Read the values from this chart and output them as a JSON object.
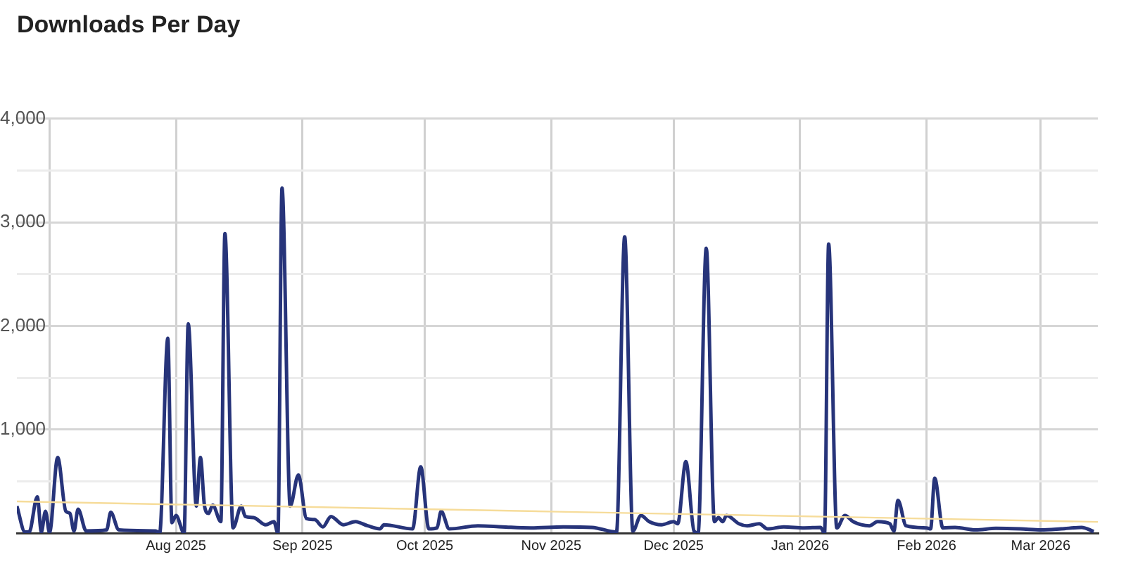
{
  "chart_data": {
    "type": "line",
    "title": "Downloads Per Day",
    "marker": "none",
    "grid": true,
    "xlim": [
      "2025-06-23",
      "2026-03-15"
    ],
    "xticks": [
      {
        "value": "2025-07",
        "label": null
      },
      {
        "value": "2025-08",
        "label": "Aug 2025"
      },
      {
        "value": "2025-09",
        "label": "Sep 2025"
      },
      {
        "value": "2025-10",
        "label": "Oct 2025"
      },
      {
        "value": "2025-11",
        "label": "Nov 2025"
      },
      {
        "value": "2025-12",
        "label": "Dec 2025"
      },
      {
        "value": "2026-01",
        "label": "Jan 2026"
      },
      {
        "value": "2026-02",
        "label": "Feb 2026"
      },
      {
        "value": "2026-03",
        "label": "Mar 2026"
      }
    ],
    "ylim": [
      0,
      4000
    ],
    "yticks": [
      {
        "value": 0,
        "label": null
      },
      {
        "value": 500,
        "label": null
      },
      {
        "value": 1000,
        "label": "1,000"
      },
      {
        "value": 1500,
        "label": null
      },
      {
        "value": 2000,
        "label": "2,000"
      },
      {
        "value": 2500,
        "label": null
      },
      {
        "value": 3000,
        "label": "3,000"
      },
      {
        "value": 3500,
        "label": null
      },
      {
        "value": 4000,
        "label": "4,000"
      }
    ],
    "series": [
      {
        "color": "#27347a",
        "x": [
          "2025-06-23",
          "2025-06-25",
          "2025-06-26",
          "2025-06-28",
          "2025-06-29",
          "2025-06-30",
          "2025-07-01",
          "2025-07-03",
          "2025-07-05",
          "2025-07-06",
          "2025-07-07",
          "2025-07-08",
          "2025-07-10",
          "2025-07-15",
          "2025-07-16",
          "2025-07-18",
          "2025-07-27",
          "2025-07-28",
          "2025-07-30",
          "2025-07-31",
          "2025-08-01",
          "2025-08-03",
          "2025-08-04",
          "2025-08-06",
          "2025-08-07",
          "2025-08-08",
          "2025-08-09",
          "2025-08-10",
          "2025-08-12",
          "2025-08-13",
          "2025-08-15",
          "2025-08-17",
          "2025-08-18",
          "2025-08-20",
          "2025-08-23",
          "2025-08-25",
          "2025-08-26",
          "2025-08-27",
          "2025-08-29",
          "2025-08-31",
          "2025-09-02",
          "2025-09-04",
          "2025-09-06",
          "2025-09-08",
          "2025-09-11",
          "2025-09-14",
          "2025-09-17",
          "2025-09-20",
          "2025-09-21",
          "2025-09-28",
          "2025-09-30",
          "2025-10-02",
          "2025-10-04",
          "2025-10-05",
          "2025-10-07",
          "2025-10-14",
          "2025-10-20",
          "2025-10-27",
          "2025-11-04",
          "2025-11-11",
          "2025-11-17",
          "2025-11-19",
          "2025-11-21",
          "2025-11-23",
          "2025-11-25",
          "2025-11-28",
          "2025-12-01",
          "2025-12-02",
          "2025-12-04",
          "2025-12-06",
          "2025-12-07",
          "2025-12-09",
          "2025-12-11",
          "2025-12-12",
          "2025-12-13",
          "2025-12-14",
          "2025-12-17",
          "2025-12-19",
          "2025-12-22",
          "2025-12-24",
          "2025-12-28",
          "2026-01-02",
          "2026-01-06",
          "2026-01-07",
          "2026-01-08",
          "2026-01-10",
          "2026-01-12",
          "2026-01-14",
          "2026-01-18",
          "2026-01-20",
          "2026-01-23",
          "2026-01-24",
          "2026-01-25",
          "2026-01-27",
          "2026-02-01",
          "2026-02-02",
          "2026-02-03",
          "2026-02-05",
          "2026-02-08",
          "2026-02-13",
          "2026-02-18",
          "2026-02-24",
          "2026-03-01",
          "2026-03-06",
          "2026-03-11",
          "2026-03-14"
        ],
        "values": [
          260,
          10,
          10,
          350,
          10,
          210,
          5,
          730,
          210,
          190,
          20,
          230,
          20,
          30,
          200,
          30,
          20,
          0,
          1880,
          100,
          170,
          0,
          2020,
          260,
          730,
          260,
          190,
          270,
          110,
          2890,
          50,
          260,
          160,
          150,
          80,
          110,
          0,
          3330,
          260,
          560,
          140,
          130,
          60,
          160,
          80,
          110,
          70,
          40,
          80,
          40,
          640,
          40,
          50,
          210,
          40,
          70,
          60,
          50,
          60,
          55,
          10,
          2860,
          20,
          170,
          110,
          80,
          110,
          90,
          690,
          20,
          0,
          2750,
          110,
          150,
          110,
          170,
          90,
          70,
          90,
          40,
          60,
          50,
          55,
          0,
          2790,
          50,
          170,
          110,
          70,
          110,
          90,
          20,
          315,
          70,
          50,
          40,
          530,
          50,
          55,
          30,
          45,
          40,
          30,
          40,
          55,
          15
        ]
      },
      {
        "color": "#f6dc9a",
        "x": [
          "2025-06-23",
          "2026-03-15"
        ],
        "values": [
          305,
          108
        ]
      }
    ]
  }
}
